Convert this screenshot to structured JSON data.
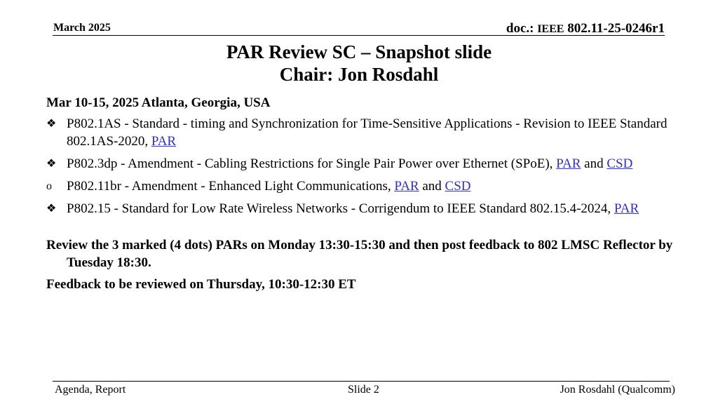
{
  "header": {
    "date": "March 2025",
    "doc_prefix": "doc.:",
    "doc_ieee": "IEEE",
    "doc_number": "802.11-25-0246r1"
  },
  "title": {
    "line1": "PAR Review SC – Snapshot slide",
    "line2": "Chair: Jon Rosdahl"
  },
  "meeting": "Mar 10-15, 2025 Atlanta, Georgia, USA",
  "items": [
    {
      "bullet": "❖",
      "text": "P802.1AS - Standard - timing and Synchronization for Time-Sensitive Applications - Revision to IEEE Standard 802.1AS-2020, ",
      "link1": "PAR",
      "mid": "",
      "link2": ""
    },
    {
      "bullet": "❖",
      "text": "P802.3dp - Amendment - Cabling Restrictions for Single Pair Power over Ethernet (SPoE), ",
      "link1": "PAR",
      "mid": " and ",
      "link2": "CSD"
    },
    {
      "bullet": "o",
      "text": "P802.11br - Amendment - Enhanced Light Communications, ",
      "link1": "PAR",
      "mid": " and ",
      "link2": "CSD"
    },
    {
      "bullet": "❖",
      "text": "P802.15 - Standard  for Low Rate Wireless Networks - Corrigendum to IEEE Standard 802.15.4-2024, ",
      "link1": "PAR",
      "mid": "",
      "link2": ""
    }
  ],
  "notes": [
    "Review the 3 marked (4 dots) PARs on Monday 13:30-15:30 and then post feedback to 802 LMSC Reflector by Tuesday 18:30.",
    "Feedback to be reviewed on Thursday, 10:30-12:30 ET"
  ],
  "footer": {
    "left": "Agenda, Report",
    "center": "Slide 2",
    "right": "Jon Rosdahl (Qualcomm)"
  },
  "colors": {
    "link": "#3333aa"
  }
}
